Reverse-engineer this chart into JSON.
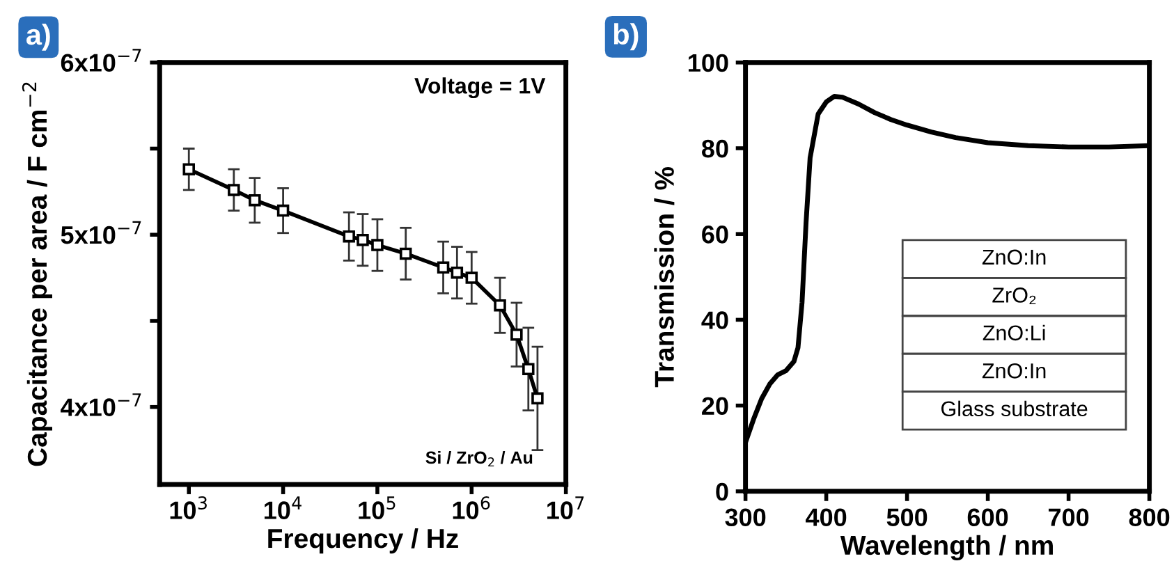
{
  "chart_data": [
    {
      "type": "line",
      "xlabel": "Frequency / Hz",
      "ylabel": "Capacitance per area / F cm$^{−2}$",
      "log": "x",
      "marker": "square",
      "line_style": "solid",
      "grid": false,
      "legend": false,
      "x": [
        1000,
        3000,
        5000,
        10000,
        50000,
        70000,
        100000,
        200000,
        500000,
        700000,
        1000000,
        2000000,
        3000000,
        4000000,
        5000000
      ],
      "series": [
        {
          "color": "#000000",
          "values": [
            5.38e-07,
            5.26e-07,
            5.2e-07,
            5.14e-07,
            4.99e-07,
            4.97e-07,
            4.94e-07,
            4.89e-07,
            4.81e-07,
            4.78e-07,
            4.75e-07,
            4.59e-07,
            4.42e-07,
            4.22e-07,
            4.05e-07
          ],
          "errors": [
            1.2e-08,
            1.2e-08,
            1.3e-08,
            1.3e-08,
            1.4e-08,
            1.5e-08,
            1.5e-08,
            1.5e-08,
            1.5e-08,
            1.5e-08,
            1.5e-08,
            1.6e-08,
            1.85e-08,
            2.4e-08,
            3e-08
          ]
        }
      ],
      "xlim": [
        490,
        10000000
      ],
      "xticks": [
        {
          "value": 1000,
          "label": "10$^{3}$"
        },
        {
          "value": 10000,
          "label": "10$^{4}$"
        },
        {
          "value": 100000,
          "label": "10$^{5}$"
        },
        {
          "value": 1000000,
          "label": "10$^{6}$"
        },
        {
          "value": 10000000,
          "label": "10$^{7}$"
        }
      ],
      "ylim": [
        3.55e-07,
        6e-07
      ],
      "yticks": [
        {
          "value": 4e-07,
          "label": "4x10$^{−7}$"
        },
        {
          "value": 4.5e-07,
          "label": null
        },
        {
          "value": 5e-07,
          "label": "5x10$^{−7}$"
        },
        {
          "value": 5.5e-07,
          "label": null
        },
        {
          "value": 6e-07,
          "label": "6x10$^{−7}$"
        }
      ],
      "annotations": [
        "a)",
        "Voltage = 1V",
        "Si / ZrO$_{2}$ / Au"
      ]
    },
    {
      "type": "line",
      "xlabel": "Wavelength / nm",
      "ylabel": "Transmission / %",
      "marker": "none",
      "line_style": "solid",
      "grid": false,
      "legend": false,
      "x": [
        300,
        310,
        320,
        330,
        340,
        350,
        360,
        365,
        370,
        375,
        380,
        390,
        400,
        410,
        420,
        440,
        460,
        480,
        500,
        530,
        560,
        600,
        650,
        700,
        750,
        800
      ],
      "series": [
        {
          "color": "#000000",
          "values": [
            11.4,
            16.8,
            21.6,
            25,
            27.2,
            28.1,
            30.3,
            33.5,
            44,
            62.7,
            77.8,
            88,
            90.8,
            92.1,
            91.9,
            90.3,
            88.3,
            86.7,
            85.4,
            83.8,
            82.5,
            81.3,
            80.6,
            80.3,
            80.3,
            80.6
          ]
        }
      ],
      "xlim": [
        300,
        800
      ],
      "xticks": [
        300,
        400,
        500,
        600,
        700,
        800
      ],
      "ylim": [
        0,
        100
      ],
      "yticks": [
        0,
        20,
        40,
        60,
        80,
        100
      ],
      "annotations": [
        "b)",
        "ZnO:In",
        "ZrO₂",
        "ZnO:Li",
        "ZnO:In",
        "Glass substrate"
      ]
    }
  ]
}
